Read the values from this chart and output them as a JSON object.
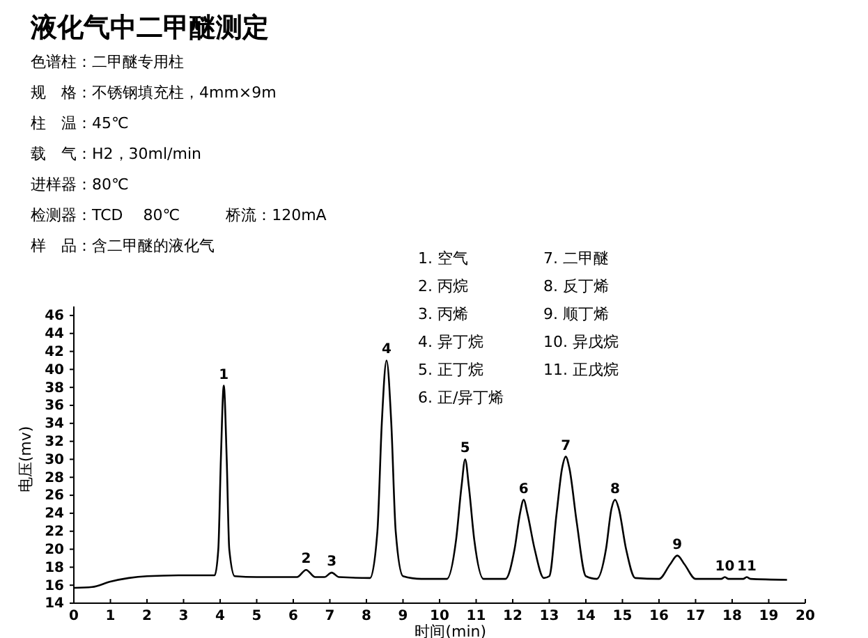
{
  "chart_data": {
    "type": "line",
    "title": "液化气中二甲醚测定",
    "annotations": [
      "色谱柱：二甲醚专用柱",
      "规　格：不锈钢填充柱，4mm×9m",
      "柱　温：45℃",
      "载　气：H2，30ml/min",
      "进样器：80℃",
      "检测器：TCD　 80℃　　　桥流：120mA",
      "样　品：含二甲醚的液化气",
      "1. 空气",
      "2. 丙烷",
      "3. 丙烯",
      "4. 异丁烷",
      "5. 正丁烷",
      "6. 正/异丁烯",
      "7. 二甲醚",
      "8. 反丁烯",
      "9. 顺丁烯",
      "10. 异戊烷",
      "11. 正戊烷",
      {
        "text": "1",
        "x": 4.1,
        "y": 38.2
      },
      {
        "text": "2",
        "x": 6.35,
        "y": 17.7
      },
      {
        "text": "3",
        "x": 7.05,
        "y": 17.4
      },
      {
        "text": "4",
        "x": 8.55,
        "y": 41.0
      },
      {
        "text": "5",
        "x": 10.7,
        "y": 30.0
      },
      {
        "text": "6",
        "x": 12.3,
        "y": 25.5
      },
      {
        "text": "7",
        "x": 13.45,
        "y": 30.3
      },
      {
        "text": "8",
        "x": 14.8,
        "y": 25.5
      },
      {
        "text": "9",
        "x": 16.5,
        "y": 19.3
      },
      {
        "text": "10",
        "x": 17.8,
        "y": 16.9
      },
      {
        "text": "11",
        "x": 18.4,
        "y": 16.9
      }
    ],
    "xlabel": "时间(min)",
    "ylabel": "电压(mv)",
    "series": [
      {
        "color": "#000000",
        "x": [
          0,
          0.5,
          1,
          1.5,
          2,
          3,
          3.85,
          3.95,
          4.02,
          4.1,
          4.18,
          4.25,
          4.4,
          5,
          6.1,
          6.35,
          6.6,
          6.85,
          7.05,
          7.25,
          8.1,
          8.3,
          8.42,
          8.55,
          8.68,
          8.8,
          9.0,
          9.5,
          10.2,
          10.45,
          10.6,
          10.7,
          10.8,
          10.95,
          11.2,
          11.8,
          12.05,
          12.2,
          12.3,
          12.4,
          12.6,
          12.85,
          13.0,
          13.2,
          13.35,
          13.45,
          13.55,
          13.75,
          14.0,
          14.3,
          14.55,
          14.7,
          14.8,
          14.9,
          15.1,
          15.35,
          16.0,
          16.3,
          16.5,
          16.7,
          17.0,
          17.7,
          17.8,
          17.9,
          18.3,
          18.4,
          18.5,
          19.5
        ],
        "values": [
          15.7,
          15.8,
          16.4,
          16.8,
          17.0,
          17.1,
          17.1,
          20,
          30,
          38.2,
          30,
          20,
          17.0,
          16.9,
          16.9,
          17.7,
          16.9,
          16.9,
          17.4,
          16.9,
          16.8,
          22,
          34,
          41.0,
          34,
          22,
          17,
          16.7,
          16.7,
          21,
          27,
          30.0,
          27,
          21,
          16.7,
          16.7,
          20,
          24,
          25.5,
          24,
          20,
          16.8,
          17,
          24,
          29,
          30.3,
          29,
          23,
          17,
          16.7,
          20,
          24.5,
          25.5,
          24.5,
          20,
          16.8,
          16.7,
          18.3,
          19.3,
          18.3,
          16.7,
          16.7,
          16.9,
          16.7,
          16.7,
          16.9,
          16.7,
          16.6
        ]
      }
    ],
    "xlim": [
      0,
      20
    ],
    "xticks": [
      0,
      1,
      2,
      3,
      4,
      5,
      6,
      7,
      8,
      9,
      10,
      11,
      12,
      13,
      14,
      15,
      16,
      17,
      18,
      19,
      20
    ],
    "ylim": [
      14,
      47
    ],
    "yticks": [
      14,
      16,
      18,
      20,
      22,
      24,
      26,
      28,
      30,
      32,
      34,
      36,
      38,
      40,
      42,
      44,
      46
    ],
    "grid": false,
    "marker": "none",
    "line_style": "solid"
  }
}
